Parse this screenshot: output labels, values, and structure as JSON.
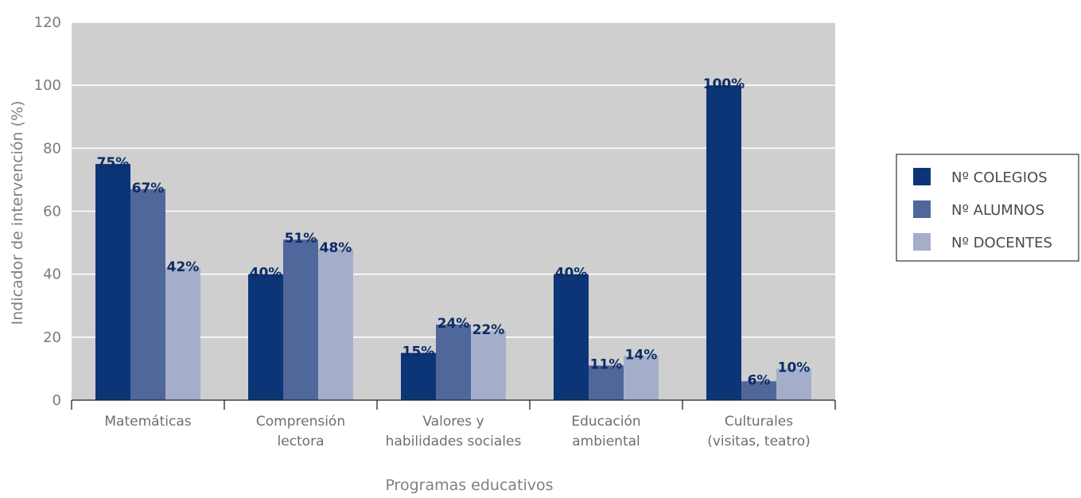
{
  "chart_data": {
    "type": "bar",
    "xlabel": "Programas educativos",
    "ylabel": "Indicador de intervención (%)",
    "ylim": [
      0,
      120
    ],
    "yticks": [
      0,
      20,
      40,
      60,
      80,
      100,
      120
    ],
    "grid": true,
    "legend_position": "right",
    "categories": [
      [
        "Matemáticas"
      ],
      [
        "Comprensión",
        "lectora"
      ],
      [
        "Valores y",
        "habilidades sociales"
      ],
      [
        "Educación",
        "ambiental"
      ],
      [
        "Culturales",
        "(visitas, teatro)"
      ]
    ],
    "series": [
      {
        "name": "Nº COLEGIOS",
        "color": "#0b3576",
        "values": [
          75,
          40,
          15,
          40,
          100
        ],
        "labels": [
          "75%",
          "40%",
          "15%",
          "40%",
          "100%"
        ]
      },
      {
        "name": "Nº ALUMNOS",
        "color": "#50679b",
        "values": [
          67,
          51,
          24,
          11,
          6
        ],
        "labels": [
          "67%",
          "51%",
          "24%",
          "11%",
          "6%"
        ]
      },
      {
        "name": "Nº DOCENTES",
        "color": "#a4aecb",
        "values": [
          42,
          48,
          22,
          14,
          10
        ],
        "labels": [
          "42%",
          "48%",
          "22%",
          "14%",
          "10%"
        ]
      }
    ]
  }
}
